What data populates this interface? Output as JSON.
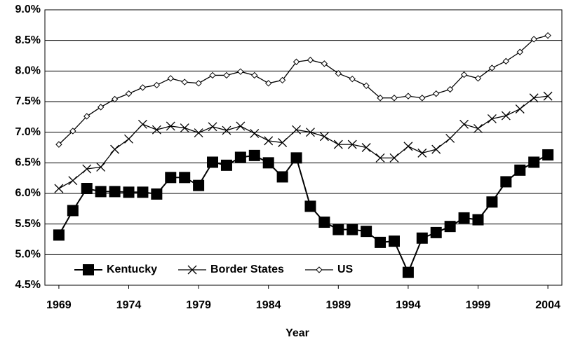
{
  "chart_data": {
    "type": "line",
    "x_label": "Year",
    "x": [
      1969,
      1970,
      1971,
      1972,
      1973,
      1974,
      1975,
      1976,
      1977,
      1978,
      1979,
      1980,
      1981,
      1982,
      1983,
      1984,
      1985,
      1986,
      1987,
      1988,
      1989,
      1990,
      1991,
      1992,
      1993,
      1994,
      1995,
      1996,
      1997,
      1998,
      1999,
      2000,
      2001,
      2002,
      2003,
      2004
    ],
    "xlim": [
      1968,
      2005
    ],
    "xticks": [
      1969,
      1974,
      1979,
      1984,
      1989,
      1994,
      1999,
      2004
    ],
    "ylim": [
      4.5,
      9.0
    ],
    "yticks": [
      {
        "value": 4.5,
        "label": "4.5%"
      },
      {
        "value": 5.0,
        "label": "5.0%"
      },
      {
        "value": 5.5,
        "label": "5.5%"
      },
      {
        "value": 6.0,
        "label": "6.0%"
      },
      {
        "value": 6.5,
        "label": "6.5%"
      },
      {
        "value": 7.0,
        "label": "7.0%"
      },
      {
        "value": 7.5,
        "label": "7.5%"
      },
      {
        "value": 8.0,
        "label": "8.0%"
      },
      {
        "value": 8.5,
        "label": "8.5%"
      },
      {
        "value": 9.0,
        "label": "9.0%"
      }
    ],
    "grid": true,
    "legend": "lower left",
    "series": [
      {
        "name": "Kentucky",
        "color": "#000000",
        "marker": "square",
        "values": [
          5.32,
          5.72,
          6.08,
          6.03,
          6.03,
          6.02,
          6.02,
          5.99,
          6.26,
          6.26,
          6.13,
          6.51,
          6.46,
          6.59,
          6.62,
          6.5,
          6.27,
          6.58,
          5.79,
          5.53,
          5.41,
          5.41,
          5.38,
          5.2,
          5.22,
          4.71,
          5.27,
          5.36,
          5.46,
          5.6,
          5.57,
          5.86,
          6.19,
          6.38,
          6.51,
          6.63
        ]
      },
      {
        "name": "Border States",
        "color": "#000000",
        "marker": "x",
        "values": [
          6.08,
          6.21,
          6.4,
          6.43,
          6.72,
          6.89,
          7.13,
          7.04,
          7.1,
          7.07,
          6.99,
          7.09,
          7.03,
          7.1,
          6.98,
          6.86,
          6.83,
          7.04,
          7.0,
          6.93,
          6.8,
          6.8,
          6.75,
          6.58,
          6.58,
          6.77,
          6.66,
          6.72,
          6.9,
          7.13,
          7.06,
          7.22,
          7.27,
          7.38,
          7.56,
          7.59
        ]
      },
      {
        "name": "US",
        "color": "#000000",
        "marker": "diamond",
        "values": [
          6.8,
          7.02,
          7.26,
          7.41,
          7.54,
          7.63,
          7.73,
          7.77,
          7.88,
          7.82,
          7.8,
          7.93,
          7.93,
          7.99,
          7.93,
          7.8,
          7.85,
          8.15,
          8.18,
          8.12,
          7.96,
          7.87,
          7.76,
          7.56,
          7.56,
          7.59,
          7.56,
          7.63,
          7.7,
          7.94,
          7.88,
          8.05,
          8.16,
          8.31,
          8.52,
          8.58
        ]
      }
    ]
  }
}
